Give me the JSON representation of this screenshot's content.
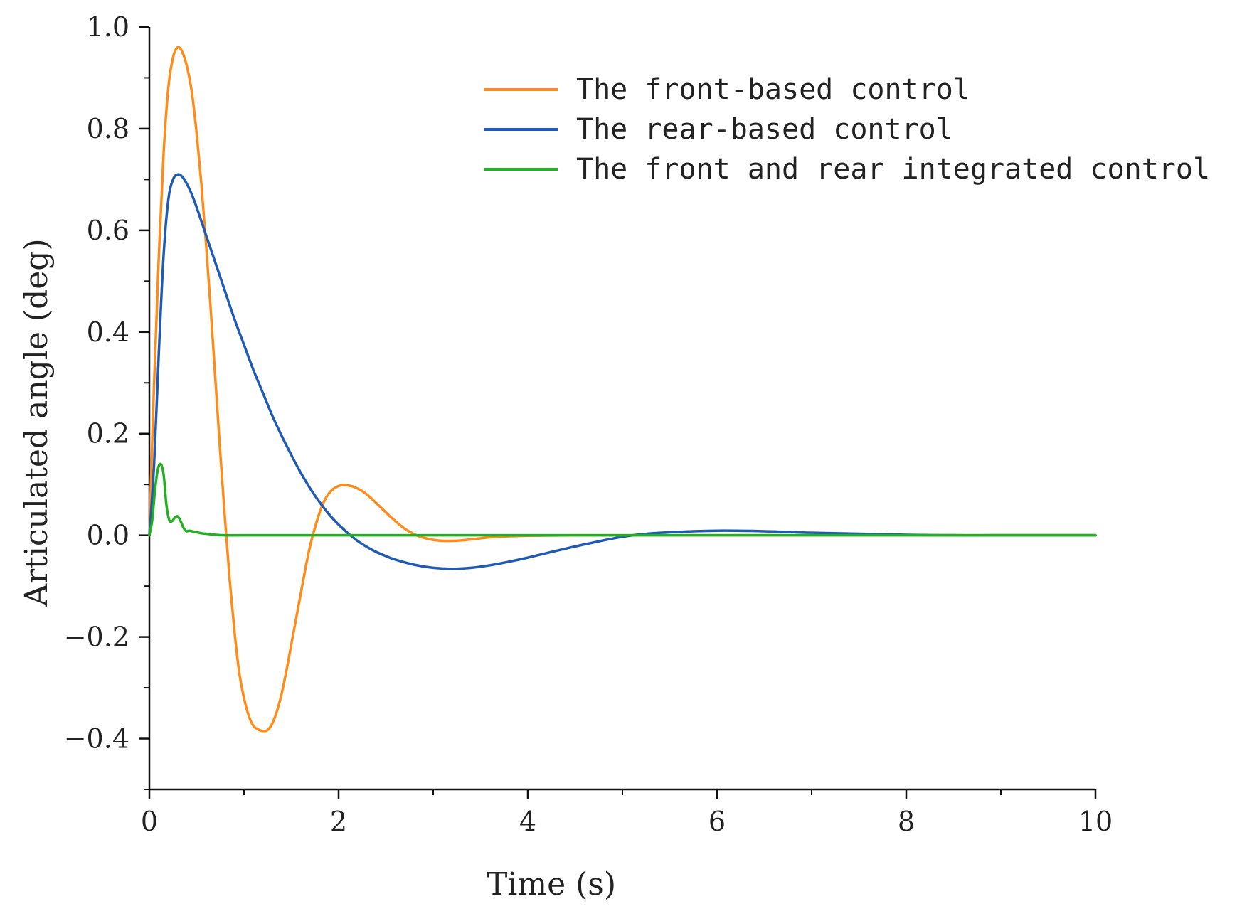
{
  "chart_data": {
    "type": "line",
    "title": "",
    "xlabel": "Time (s)",
    "ylabel": "Articulated angle (deg)",
    "xlim": [
      0,
      10
    ],
    "ylim": [
      -0.5,
      1.0
    ],
    "x_ticks": [
      0,
      2,
      4,
      6,
      8,
      10
    ],
    "x_tick_labels": [
      "0",
      "2",
      "4",
      "6",
      "8",
      "10"
    ],
    "y_ticks": [
      -0.4,
      -0.2,
      0.0,
      0.2,
      0.4,
      0.6,
      0.8,
      1.0
    ],
    "y_tick_labels": [
      "−0.4",
      "−0.2",
      "0.0",
      "0.2",
      "0.4",
      "0.6",
      "0.8",
      "1.0"
    ],
    "grid": false,
    "legend_position": "top-right",
    "series": [
      {
        "name": "The front-based control",
        "color": "#ff8c1a",
        "x": [
          0,
          0.05,
          0.1,
          0.15,
          0.2,
          0.25,
          0.3,
          0.35,
          0.4,
          0.45,
          0.5,
          0.55,
          0.6,
          0.65,
          0.7,
          0.75,
          0.8,
          0.85,
          0.9,
          0.95,
          1.0,
          1.05,
          1.1,
          1.15,
          1.2,
          1.25,
          1.3,
          1.35,
          1.4,
          1.45,
          1.5,
          1.55,
          1.6,
          1.65,
          1.7,
          1.75,
          1.8,
          1.85,
          1.9,
          1.95,
          2.0,
          2.05,
          2.1,
          2.15,
          2.2,
          2.25,
          2.3,
          2.35,
          2.4,
          2.45,
          2.5,
          2.55,
          2.6,
          2.65,
          2.7,
          2.75,
          2.8,
          2.85,
          2.9,
          2.95,
          3.0,
          3.1,
          3.2,
          3.3,
          3.4,
          3.5,
          3.6,
          3.8,
          4.0,
          4.5,
          5.0,
          6.0,
          7.0,
          8.0,
          9.0,
          10.0
        ],
        "y": [
          0,
          0.3,
          0.55,
          0.75,
          0.88,
          0.94,
          0.96,
          0.95,
          0.92,
          0.87,
          0.79,
          0.69,
          0.57,
          0.44,
          0.3,
          0.16,
          0.03,
          -0.09,
          -0.19,
          -0.27,
          -0.32,
          -0.355,
          -0.375,
          -0.382,
          -0.385,
          -0.383,
          -0.37,
          -0.345,
          -0.31,
          -0.265,
          -0.215,
          -0.165,
          -0.115,
          -0.065,
          -0.02,
          0.015,
          0.045,
          0.068,
          0.083,
          0.092,
          0.097,
          0.099,
          0.098,
          0.096,
          0.092,
          0.087,
          0.08,
          0.072,
          0.063,
          0.054,
          0.045,
          0.036,
          0.028,
          0.02,
          0.013,
          0.007,
          0.002,
          -0.002,
          -0.005,
          -0.007,
          -0.009,
          -0.011,
          -0.011,
          -0.01,
          -0.008,
          -0.006,
          -0.004,
          -0.002,
          -0.001,
          0.0,
          0.0,
          0.0,
          0.0,
          0.0,
          0.0,
          0.0
        ]
      },
      {
        "name": "The rear-based control",
        "color": "#1f5bb5",
        "x": [
          0,
          0.05,
          0.1,
          0.15,
          0.2,
          0.25,
          0.3,
          0.35,
          0.4,
          0.45,
          0.5,
          0.6,
          0.7,
          0.8,
          0.9,
          1.0,
          1.1,
          1.2,
          1.3,
          1.4,
          1.5,
          1.6,
          1.7,
          1.8,
          1.9,
          2.0,
          2.1,
          2.2,
          2.3,
          2.4,
          2.5,
          2.6,
          2.8,
          3.0,
          3.2,
          3.4,
          3.6,
          3.8,
          4.0,
          4.2,
          4.5,
          4.8,
          5.0,
          5.2,
          5.5,
          6.0,
          6.5,
          7.0,
          7.5,
          8.0,
          8.5,
          9.0,
          10.0
        ],
        "y": [
          0,
          0.14,
          0.36,
          0.55,
          0.66,
          0.7,
          0.71,
          0.705,
          0.69,
          0.67,
          0.645,
          0.59,
          0.535,
          0.48,
          0.425,
          0.375,
          0.325,
          0.28,
          0.235,
          0.195,
          0.158,
          0.123,
          0.092,
          0.065,
          0.041,
          0.021,
          0.004,
          -0.011,
          -0.023,
          -0.033,
          -0.041,
          -0.048,
          -0.058,
          -0.064,
          -0.066,
          -0.064,
          -0.059,
          -0.052,
          -0.044,
          -0.035,
          -0.022,
          -0.01,
          -0.003,
          0.002,
          0.006,
          0.009,
          0.008,
          0.005,
          0.003,
          0.001,
          0.0,
          0.0,
          0.0
        ]
      },
      {
        "name": "The front and rear integrated control",
        "color": "#22b022",
        "x": [
          0,
          0.03,
          0.06,
          0.09,
          0.12,
          0.15,
          0.18,
          0.21,
          0.24,
          0.27,
          0.3,
          0.33,
          0.36,
          0.39,
          0.42,
          0.45,
          0.5,
          0.55,
          0.6,
          0.7,
          0.8,
          1.0,
          2.0,
          4.0,
          6.0,
          8.0,
          10.0
        ],
        "y": [
          0,
          0.03,
          0.09,
          0.13,
          0.14,
          0.12,
          0.06,
          0.03,
          0.028,
          0.035,
          0.037,
          0.028,
          0.015,
          0.008,
          0.009,
          0.008,
          0.006,
          0.004,
          0.003,
          0.001,
          0.0,
          0.0,
          0.0,
          0.0,
          0.0,
          0.0,
          0.0
        ]
      }
    ]
  }
}
